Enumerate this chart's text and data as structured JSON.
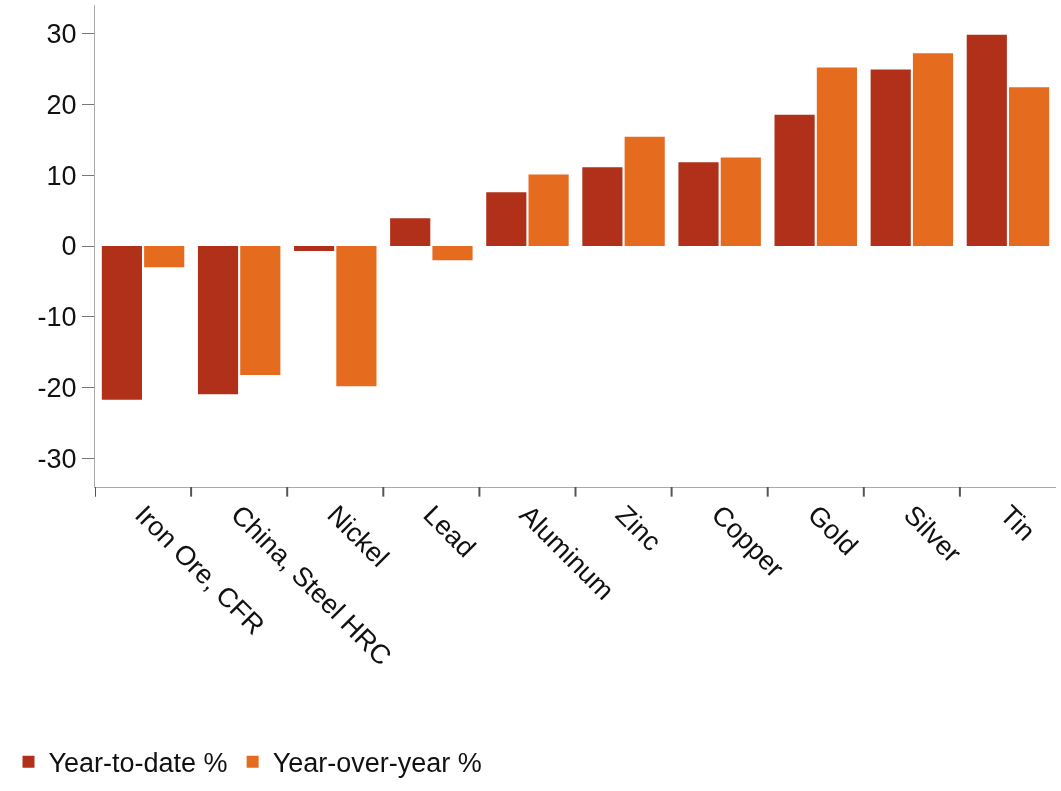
{
  "chart_data": {
    "type": "bar",
    "categories": [
      "Iron Ore, CFR",
      "China, Steel HRC",
      "Nickel",
      "Lead",
      "Aluminum",
      "Zinc",
      "Copper",
      "Gold",
      "Silver",
      "Tin"
    ],
    "series": [
      {
        "name": "Year-to-date %",
        "color": "#b0301a",
        "values": [
          -21.7,
          -20.9,
          -0.7,
          3.9,
          7.6,
          11.1,
          11.8,
          18.5,
          24.9,
          29.8
        ]
      },
      {
        "name": "Year-over-year %",
        "color": "#e56b1f",
        "values": [
          -3.0,
          -18.2,
          -19.8,
          -2.0,
          10.1,
          15.4,
          12.5,
          25.2,
          27.2,
          22.4
        ]
      }
    ],
    "ylim": [
      -34,
      34
    ],
    "yticks": [
      -30,
      -20,
      -10,
      0,
      10,
      20,
      30
    ],
    "grid": false,
    "legend": "bottom left"
  }
}
